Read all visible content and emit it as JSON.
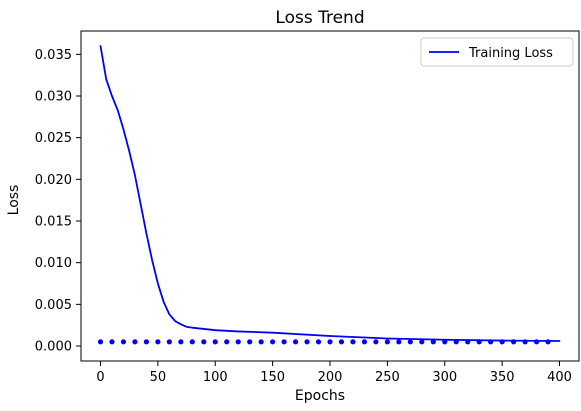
{
  "chart_data": {
    "type": "line",
    "title": "Loss Trend",
    "xlabel": "Epochs",
    "ylabel": "Loss",
    "xlim": [
      -17,
      417
    ],
    "ylim": [
      -0.0018,
      0.0378
    ],
    "xticks": [
      0,
      50,
      100,
      150,
      200,
      250,
      300,
      350,
      400
    ],
    "xtick_labels": [
      "0",
      "50",
      "100",
      "150",
      "200",
      "250",
      "300",
      "350",
      "400"
    ],
    "yticks": [
      0.0,
      0.005,
      0.01,
      0.015,
      0.02,
      0.025,
      0.03,
      0.035
    ],
    "ytick_labels": [
      "0.000",
      "0.005",
      "0.010",
      "0.015",
      "0.020",
      "0.025",
      "0.030",
      "0.035"
    ],
    "grid": false,
    "legend_position": "top-right",
    "series": [
      {
        "name": "Training Loss",
        "kind": "line",
        "color": "#0000ff",
        "x": [
          0,
          5,
          10,
          15,
          20,
          25,
          30,
          35,
          40,
          45,
          50,
          55,
          60,
          65,
          70,
          75,
          80,
          90,
          100,
          120,
          150,
          200,
          250,
          300,
          350,
          400
        ],
        "y": [
          0.036,
          0.032,
          0.03,
          0.0283,
          0.026,
          0.0234,
          0.0205,
          0.017,
          0.0135,
          0.0103,
          0.0075,
          0.0053,
          0.0038,
          0.003,
          0.0026,
          0.0023,
          0.0022,
          0.00205,
          0.0019,
          0.00175,
          0.0016,
          0.0012,
          0.0009,
          0.00075,
          0.00065,
          0.0006
        ]
      },
      {
        "name": "",
        "kind": "scatter",
        "color": "#0000ff",
        "x": [
          0,
          10,
          20,
          30,
          40,
          50,
          60,
          70,
          80,
          90,
          100,
          110,
          120,
          130,
          140,
          150,
          160,
          170,
          180,
          190,
          200,
          210,
          220,
          230,
          240,
          250,
          260,
          270,
          280,
          290,
          300,
          310,
          320,
          330,
          340,
          350,
          360,
          370,
          380,
          390
        ],
        "y": [
          0.0005,
          0.0005,
          0.0005,
          0.0005,
          0.0005,
          0.0005,
          0.0005,
          0.0005,
          0.0005,
          0.0005,
          0.0005,
          0.0005,
          0.0005,
          0.0005,
          0.0005,
          0.0005,
          0.0005,
          0.0005,
          0.0005,
          0.0005,
          0.0005,
          0.0005,
          0.0005,
          0.0005,
          0.0005,
          0.0005,
          0.0005,
          0.0005,
          0.0005,
          0.0005,
          0.0005,
          0.0005,
          0.0005,
          0.0005,
          0.0005,
          0.0005,
          0.0005,
          0.0005,
          0.0005,
          0.0005
        ]
      }
    ]
  }
}
